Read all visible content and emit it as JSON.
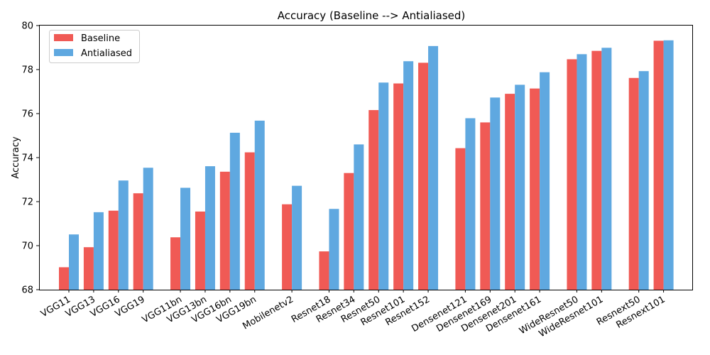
{
  "chart_data": {
    "type": "bar",
    "title": "Accuracy (Baseline --> Antialiased)",
    "xlabel": "",
    "ylabel": "Accuracy",
    "ylim": [
      68,
      80
    ],
    "yticks": [
      68,
      70,
      72,
      74,
      76,
      78,
      80
    ],
    "grid": false,
    "legend_placement": "top-left",
    "groups": [
      [
        "VGG11",
        "VGG13",
        "VGG16",
        "VGG19"
      ],
      [
        "VGG11bn",
        "VGG13bn",
        "VGG16bn",
        "VGG19bn"
      ],
      [
        "Mobilenetv2"
      ],
      [
        "Resnet18",
        "Resnet34",
        "Resnet50",
        "Resnet101",
        "Resnet152"
      ],
      [
        "Densenet121",
        "Densenet169",
        "Densenet201",
        "Densenet161"
      ],
      [
        "WideResnet50",
        "WideResnet101"
      ],
      [
        "Resnext50",
        "Resnext101"
      ]
    ],
    "categories": [
      "VGG11",
      "VGG13",
      "VGG16",
      "VGG19",
      "VGG11bn",
      "VGG13bn",
      "VGG16bn",
      "VGG19bn",
      "Mobilenetv2",
      "Resnet18",
      "Resnet34",
      "Resnet50",
      "Resnet101",
      "Resnet152",
      "Densenet121",
      "Densenet169",
      "Densenet201",
      "Densenet161",
      "WideResnet50",
      "WideResnet101",
      "Resnext50",
      "Resnext101"
    ],
    "series": [
      {
        "name": "Baseline",
        "color": "#f05a55",
        "values": [
          69.02,
          69.93,
          71.59,
          72.38,
          70.38,
          71.55,
          73.36,
          74.24,
          71.88,
          69.74,
          73.3,
          76.16,
          77.37,
          78.31,
          74.43,
          75.6,
          76.9,
          77.14,
          78.47,
          78.85,
          77.62,
          79.31
        ]
      },
      {
        "name": "Antialiased",
        "color": "#5fa8e0",
        "values": [
          70.51,
          71.52,
          72.96,
          73.54,
          72.63,
          73.61,
          75.13,
          75.68,
          72.72,
          71.67,
          74.6,
          77.41,
          78.38,
          79.07,
          75.79,
          76.73,
          77.31,
          77.88,
          78.7,
          78.99,
          77.93,
          79.33
        ]
      }
    ]
  }
}
